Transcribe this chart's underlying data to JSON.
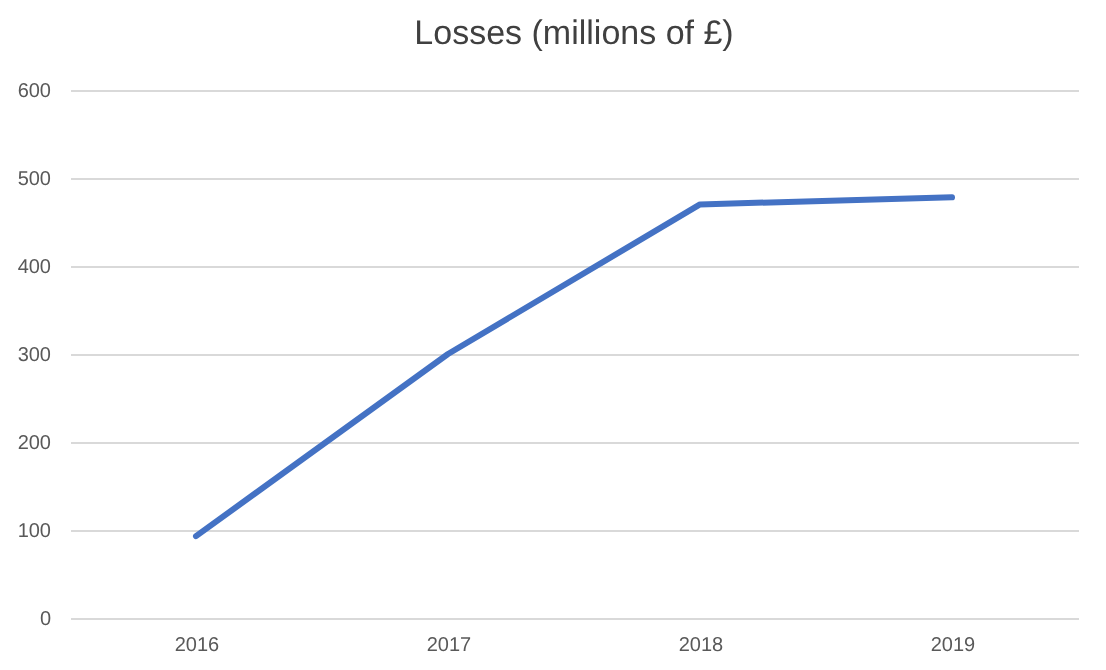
{
  "chart_data": {
    "type": "line",
    "title": "Losses (millions of £)",
    "categories": [
      "2016",
      "2017",
      "2018",
      "2019"
    ],
    "series": [
      {
        "color": "#4472c4",
        "values": [
          93,
          300,
          470,
          478
        ]
      }
    ],
    "ylim": [
      0,
      600
    ],
    "yticks": [
      0,
      100,
      200,
      300,
      400,
      500,
      600
    ],
    "grid": "y",
    "marker": "none",
    "line_style": "solid"
  }
}
